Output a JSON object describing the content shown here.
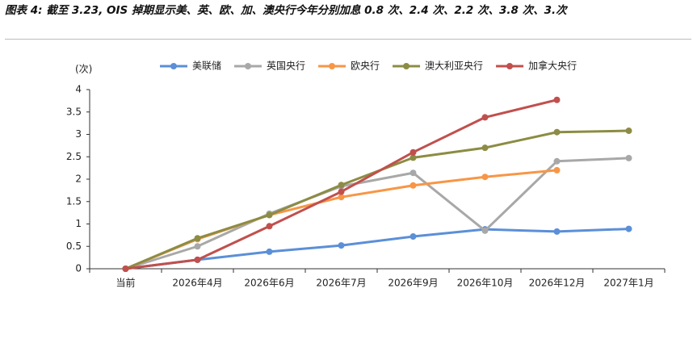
{
  "chart_data": {
    "type": "line",
    "title": "图表 4: 截至 3.23, OIS 掉期显示美、英、欧、加、澳央行今年分别加息 0.8 次、2.4 次、2.2 次、3.8 次、3.次",
    "y_label": "(次)",
    "categories": [
      "当前",
      "2026年4月",
      "2026年6月",
      "2026年7月",
      "2026年9月",
      "2026年10月",
      "2026年12月",
      "2027年1月"
    ],
    "series": [
      {
        "name": "美联储",
        "color": "#5b8fd8",
        "values": [
          0,
          0.2,
          0.38,
          0.52,
          0.72,
          0.88,
          0.83,
          0.89
        ]
      },
      {
        "name": "英国央行",
        "color": "#a8a8a8",
        "values": [
          0,
          0.5,
          1.23,
          1.84,
          2.14,
          0.85,
          2.4,
          2.47
        ]
      },
      {
        "name": "欧央行",
        "color": "#f79646",
        "values": [
          0,
          0.66,
          1.2,
          1.6,
          1.86,
          2.05,
          2.2,
          null
        ]
      },
      {
        "name": "澳大利亚央行",
        "color": "#8c8c44",
        "values": [
          0,
          0.68,
          1.2,
          1.87,
          2.48,
          2.7,
          3.05,
          3.08
        ]
      },
      {
        "name": "加拿大央行",
        "color": "#c0504d",
        "values": [
          0,
          0.2,
          0.95,
          1.72,
          2.6,
          3.38,
          3.77,
          null
        ]
      }
    ],
    "ylim": [
      0,
      4
    ],
    "yticks": [
      0,
      0.5,
      1,
      1.5,
      2,
      2.5,
      3,
      3.5,
      4
    ],
    "grid": false
  }
}
